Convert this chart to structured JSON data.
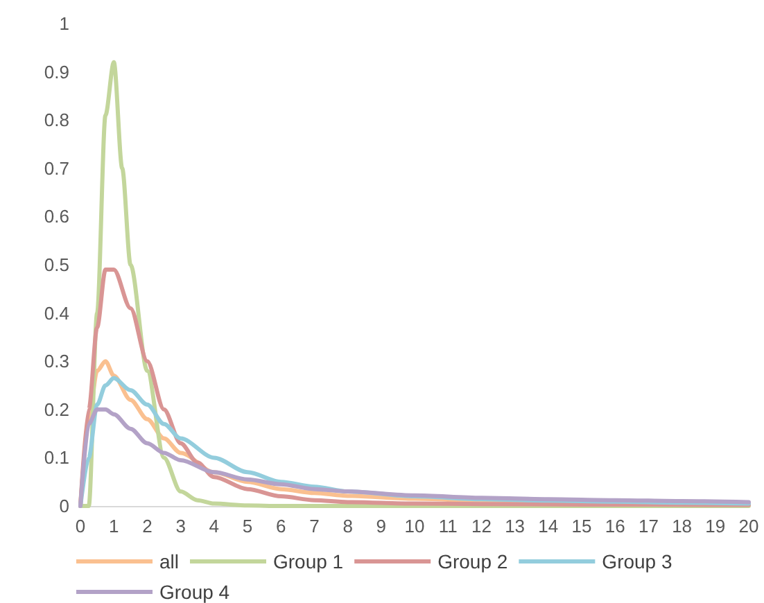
{
  "chart_data": {
    "type": "line",
    "xlim": [
      0,
      20
    ],
    "xticks": [
      0,
      1,
      2,
      3,
      4,
      5,
      6,
      7,
      8,
      9,
      10,
      11,
      12,
      13,
      14,
      15,
      16,
      17,
      18,
      19,
      20
    ],
    "ylim": [
      0,
      1
    ],
    "yticks": [
      0,
      0.1,
      0.2,
      0.3,
      0.4,
      0.5,
      0.6,
      0.7,
      0.8,
      0.9,
      1
    ],
    "grid": false,
    "legend": "bottom",
    "marker": "none",
    "line_style": "solid",
    "series": [
      {
        "name": "all",
        "color": "#fac090",
        "x": [
          0,
          0.25,
          0.5,
          0.75,
          1,
          1.5,
          2,
          2.5,
          3,
          4,
          5,
          6,
          7,
          8,
          10,
          12,
          14,
          16,
          18,
          20
        ],
        "values": [
          0,
          0.18,
          0.28,
          0.3,
          0.27,
          0.22,
          0.18,
          0.14,
          0.11,
          0.07,
          0.05,
          0.035,
          0.027,
          0.021,
          0.015,
          0.011,
          0.009,
          0.007,
          0.006,
          0.005
        ]
      },
      {
        "name": "Group 1",
        "color": "#c3d69b",
        "x": [
          0,
          0.25,
          0.5,
          0.75,
          1,
          1.25,
          1.5,
          2,
          2.5,
          3,
          3.5,
          4,
          5,
          6,
          8,
          10,
          15,
          20
        ],
        "values": [
          0,
          0,
          0.4,
          0.81,
          0.92,
          0.7,
          0.5,
          0.28,
          0.1,
          0.03,
          0.012,
          0.005,
          0.001,
          0,
          0,
          0,
          0,
          0
        ]
      },
      {
        "name": "Group 2",
        "color": "#d99594",
        "x": [
          0,
          0.25,
          0.5,
          0.75,
          1,
          1.5,
          2,
          2.5,
          3,
          3.5,
          4,
          5,
          6,
          7,
          8,
          10,
          12,
          15,
          20
        ],
        "values": [
          0,
          0.2,
          0.37,
          0.49,
          0.49,
          0.41,
          0.3,
          0.2,
          0.13,
          0.09,
          0.06,
          0.035,
          0.02,
          0.012,
          0.008,
          0.005,
          0.004,
          0.003,
          0.002
        ]
      },
      {
        "name": "Group 3",
        "color": "#93cddd",
        "x": [
          0,
          0.25,
          0.5,
          0.75,
          1,
          1.5,
          2,
          2.5,
          3,
          4,
          5,
          6,
          7,
          8,
          10,
          12,
          14,
          16,
          18,
          20
        ],
        "values": [
          0,
          0.1,
          0.21,
          0.25,
          0.265,
          0.24,
          0.21,
          0.17,
          0.14,
          0.1,
          0.07,
          0.05,
          0.04,
          0.03,
          0.02,
          0.014,
          0.011,
          0.009,
          0.007,
          0.005
        ]
      },
      {
        "name": "Group 4",
        "color": "#b3a2c7",
        "x": [
          0,
          0.25,
          0.5,
          0.75,
          1,
          1.5,
          2,
          2.5,
          3,
          4,
          5,
          6,
          7,
          8,
          10,
          12,
          14,
          16,
          18,
          20
        ],
        "values": [
          0,
          0.17,
          0.2,
          0.2,
          0.19,
          0.16,
          0.13,
          0.11,
          0.095,
          0.07,
          0.055,
          0.045,
          0.035,
          0.03,
          0.022,
          0.017,
          0.014,
          0.012,
          0.01,
          0.008
        ]
      }
    ]
  }
}
